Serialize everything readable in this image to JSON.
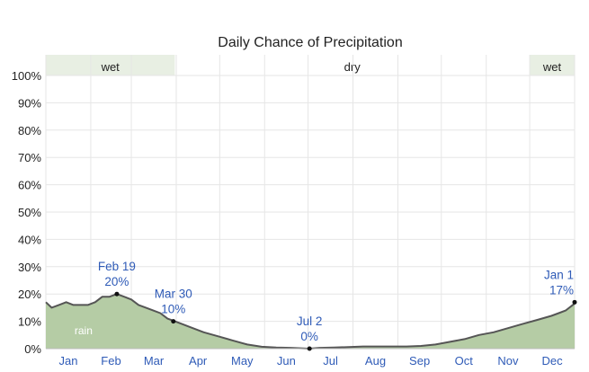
{
  "chart_data": {
    "type": "area",
    "title": "Daily Chance of Precipitation",
    "ylim": [
      0,
      100
    ],
    "yticks": [
      "0%",
      "10%",
      "20%",
      "30%",
      "40%",
      "50%",
      "60%",
      "70%",
      "80%",
      "90%",
      "100%"
    ],
    "months": [
      "Jan",
      "Feb",
      "Mar",
      "Apr",
      "May",
      "Jun",
      "Jul",
      "Aug",
      "Sep",
      "Oct",
      "Nov",
      "Dec"
    ],
    "seasons": [
      {
        "label": "wet",
        "start_day": 1,
        "end_day": 90
      },
      {
        "label": "dry",
        "start_day": 90,
        "end_day": 335
      },
      {
        "label": "wet",
        "start_day": 335,
        "end_day": 366
      }
    ],
    "series": [
      {
        "name": "rain",
        "color": "#b5cca5",
        "line_color": "#555555",
        "x_day": [
          1,
          5,
          10,
          15,
          20,
          25,
          30,
          35,
          40,
          45,
          50,
          55,
          60,
          65,
          70,
          75,
          80,
          85,
          90,
          95,
          100,
          110,
          120,
          130,
          140,
          150,
          160,
          170,
          183,
          190,
          200,
          210,
          220,
          230,
          240,
          250,
          260,
          270,
          280,
          290,
          300,
          310,
          320,
          330,
          340,
          350,
          355,
          360,
          366
        ],
        "y_percent": [
          17,
          15,
          16,
          17,
          16,
          16,
          16,
          17,
          19,
          19,
          20,
          19,
          18,
          16,
          15,
          14,
          13,
          11,
          10,
          9,
          8,
          6,
          4.5,
          3,
          1.5,
          0.7,
          0.4,
          0.3,
          0,
          0.3,
          0.4,
          0.6,
          0.8,
          0.8,
          0.8,
          0.8,
          1,
          1.5,
          2.5,
          3.5,
          5,
          6,
          7.5,
          9,
          10.5,
          12,
          13,
          14,
          16.5
        ]
      }
    ],
    "annotations": [
      {
        "date": "Feb 19",
        "value": "20%",
        "x_day": 50,
        "y": 20
      },
      {
        "date": "Mar 30",
        "value": "10%",
        "x_day": 89,
        "y": 10
      },
      {
        "date": "Jul 2",
        "value": "0%",
        "x_day": 183,
        "y": 0
      },
      {
        "date": "Jan 1",
        "value": "17%",
        "x_day": 366,
        "y": 17
      }
    ]
  },
  "colors": {
    "wet_band": "#e8efe3",
    "grid": "#e6e6e6",
    "month_text": "#2f5bb7"
  }
}
